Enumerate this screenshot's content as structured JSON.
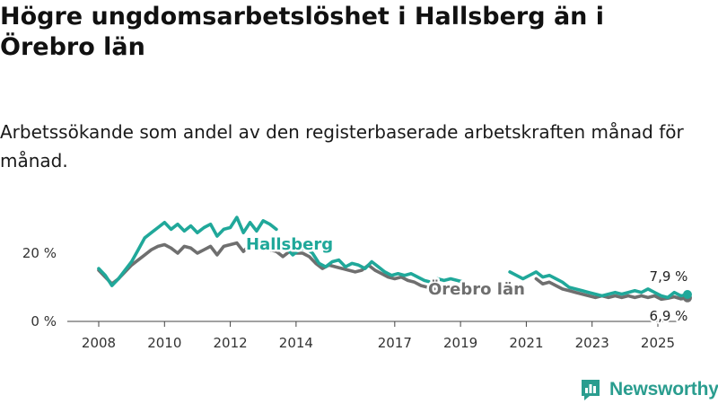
{
  "title": "Högre ungdomsarbetslöshet i Hallsberg än i Örebro län",
  "subtitle": "Arbetssökande som andel av den registerbaserade arbetskraften månad för månad.",
  "brand": "Newsworthy",
  "colors": {
    "hallsberg": "#20a89a",
    "orebro": "#6f6f6f",
    "axis": "#444444",
    "brand": "#2a9d8f"
  },
  "chart_data": {
    "type": "line",
    "x_ticks": [
      "2008",
      "2010",
      "2012",
      "2014",
      "2017",
      "2019",
      "2021",
      "2023",
      "2025"
    ],
    "x_tick_positions": [
      2008,
      2010,
      2012,
      2014,
      2017,
      2019,
      2021,
      2023,
      2025
    ],
    "y_ticks": [
      0,
      20
    ],
    "y_tick_labels": [
      "0 %",
      "20 %"
    ],
    "xlim": [
      2007.1,
      2026.0
    ],
    "ylim": [
      0,
      35
    ],
    "series": [
      {
        "name": "Hallsberg",
        "label": "Hallsberg",
        "end_label": "7,9 %",
        "segments": [
          [
            [
              2008.0,
              15.5
            ],
            [
              2008.2,
              13.5
            ],
            [
              2008.4,
              10.5
            ],
            [
              2008.6,
              12.5
            ],
            [
              2008.8,
              15.0
            ],
            [
              2009.0,
              17.5
            ],
            [
              2009.2,
              21.0
            ],
            [
              2009.4,
              24.5
            ],
            [
              2009.6,
              26.0
            ],
            [
              2009.8,
              27.5
            ],
            [
              2010.0,
              29.0
            ],
            [
              2010.2,
              27.0
            ],
            [
              2010.4,
              28.5
            ],
            [
              2010.6,
              26.5
            ],
            [
              2010.8,
              28.0
            ],
            [
              2011.0,
              26.0
            ],
            [
              2011.2,
              27.5
            ],
            [
              2011.4,
              28.5
            ],
            [
              2011.6,
              25.0
            ],
            [
              2011.8,
              27.0
            ],
            [
              2012.0,
              27.5
            ],
            [
              2012.2,
              30.5
            ],
            [
              2012.4,
              26.0
            ],
            [
              2012.6,
              29.0
            ],
            [
              2012.8,
              26.5
            ],
            [
              2013.0,
              29.5
            ],
            [
              2013.2,
              28.5
            ],
            [
              2013.4,
              27.0
            ]
          ],
          [
            [
              2013.7,
              21.5
            ],
            [
              2013.9,
              19.5
            ],
            [
              2014.1,
              21.0
            ],
            [
              2014.3,
              21.5
            ],
            [
              2014.5,
              20.0
            ],
            [
              2014.7,
              17.0
            ],
            [
              2014.9,
              16.0
            ],
            [
              2015.1,
              17.5
            ],
            [
              2015.3,
              18.0
            ],
            [
              2015.5,
              16.0
            ],
            [
              2015.7,
              17.0
            ],
            [
              2015.9,
              16.5
            ],
            [
              2016.1,
              15.5
            ],
            [
              2016.3,
              17.5
            ],
            [
              2016.5,
              16.0
            ],
            [
              2016.7,
              14.5
            ],
            [
              2016.9,
              13.5
            ],
            [
              2017.1,
              14.0
            ],
            [
              2017.3,
              13.5
            ],
            [
              2017.5,
              14.0
            ],
            [
              2017.7,
              13.0
            ],
            [
              2017.9,
              12.0
            ],
            [
              2018.1,
              11.5
            ],
            [
              2018.3,
              12.5
            ],
            [
              2018.5,
              12.0
            ],
            [
              2018.7,
              12.5
            ],
            [
              2018.9,
              12.0
            ],
            [
              2019.1,
              11.5
            ]
          ],
          [
            [
              2020.5,
              14.5
            ],
            [
              2020.7,
              13.5
            ],
            [
              2020.9,
              12.5
            ],
            [
              2021.1,
              13.5
            ],
            [
              2021.3,
              14.5
            ],
            [
              2021.5,
              13.0
            ],
            [
              2021.7,
              13.5
            ],
            [
              2021.9,
              12.5
            ],
            [
              2022.1,
              11.5
            ],
            [
              2022.3,
              10.0
            ],
            [
              2022.5,
              9.5
            ],
            [
              2022.7,
              9.0
            ],
            [
              2022.9,
              8.5
            ],
            [
              2023.1,
              8.0
            ],
            [
              2023.3,
              7.5
            ],
            [
              2023.5,
              8.0
            ],
            [
              2023.7,
              8.5
            ],
            [
              2023.9,
              8.0
            ],
            [
              2024.1,
              8.5
            ],
            [
              2024.3,
              9.0
            ],
            [
              2024.5,
              8.5
            ],
            [
              2024.7,
              9.5
            ],
            [
              2024.9,
              8.5
            ],
            [
              2025.1,
              7.5
            ],
            [
              2025.3,
              7.0
            ],
            [
              2025.5,
              8.5
            ],
            [
              2025.7,
              7.5
            ],
            [
              2025.9,
              7.9
            ]
          ]
        ]
      },
      {
        "name": "Örebro län",
        "label": "Örebro län",
        "end_label": "6,9 %",
        "segments": [
          [
            [
              2008.0,
              15.0
            ],
            [
              2008.2,
              13.0
            ],
            [
              2008.4,
              11.0
            ],
            [
              2008.6,
              12.5
            ],
            [
              2008.8,
              14.5
            ],
            [
              2009.0,
              16.5
            ],
            [
              2009.2,
              18.0
            ],
            [
              2009.4,
              19.5
            ],
            [
              2009.6,
              21.0
            ],
            [
              2009.8,
              22.0
            ],
            [
              2010.0,
              22.5
            ],
            [
              2010.2,
              21.5
            ],
            [
              2010.4,
              20.0
            ],
            [
              2010.6,
              22.0
            ],
            [
              2010.8,
              21.5
            ],
            [
              2011.0,
              20.0
            ],
            [
              2011.2,
              21.0
            ],
            [
              2011.4,
              22.0
            ],
            [
              2011.6,
              19.5
            ],
            [
              2011.8,
              22.0
            ],
            [
              2012.0,
              22.5
            ],
            [
              2012.2,
              23.0
            ],
            [
              2012.4,
              20.5
            ],
            [
              2012.6,
              22.5
            ],
            [
              2012.8,
              21.0
            ],
            [
              2013.0,
              22.0
            ],
            [
              2013.2,
              21.0
            ],
            [
              2013.4,
              20.5
            ],
            [
              2013.6,
              19.0
            ],
            [
              2013.8,
              20.5
            ],
            [
              2014.0,
              20.0
            ],
            [
              2014.2,
              20.0
            ],
            [
              2014.4,
              19.0
            ],
            [
              2014.6,
              17.0
            ],
            [
              2014.8,
              15.5
            ],
            [
              2015.0,
              16.5
            ],
            [
              2015.2,
              16.0
            ],
            [
              2015.4,
              15.5
            ],
            [
              2015.6,
              15.0
            ],
            [
              2015.8,
              14.5
            ],
            [
              2016.0,
              15.0
            ],
            [
              2016.2,
              16.5
            ],
            [
              2016.4,
              15.0
            ],
            [
              2016.6,
              14.0
            ],
            [
              2016.8,
              13.0
            ],
            [
              2017.0,
              12.5
            ],
            [
              2017.2,
              13.0
            ],
            [
              2017.4,
              12.0
            ],
            [
              2017.6,
              11.5
            ],
            [
              2017.8,
              10.5
            ],
            [
              2018.0,
              10.0
            ],
            [
              2018.2,
              9.5
            ]
          ],
          [
            [
              2021.3,
              12.5
            ],
            [
              2021.5,
              11.0
            ],
            [
              2021.7,
              11.5
            ],
            [
              2021.9,
              10.5
            ],
            [
              2022.1,
              9.5
            ],
            [
              2022.3,
              9.0
            ],
            [
              2022.5,
              8.5
            ],
            [
              2022.7,
              8.0
            ],
            [
              2022.9,
              7.5
            ],
            [
              2023.1,
              7.0
            ],
            [
              2023.3,
              7.5
            ],
            [
              2023.5,
              7.0
            ],
            [
              2023.7,
              7.5
            ],
            [
              2023.9,
              7.0
            ],
            [
              2024.1,
              7.5
            ],
            [
              2024.3,
              7.0
            ],
            [
              2024.5,
              7.5
            ],
            [
              2024.7,
              7.0
            ],
            [
              2024.9,
              7.5
            ],
            [
              2025.1,
              6.5
            ],
            [
              2025.3,
              6.8
            ],
            [
              2025.5,
              7.2
            ],
            [
              2025.7,
              6.6
            ],
            [
              2025.9,
              6.9
            ]
          ]
        ]
      }
    ]
  }
}
